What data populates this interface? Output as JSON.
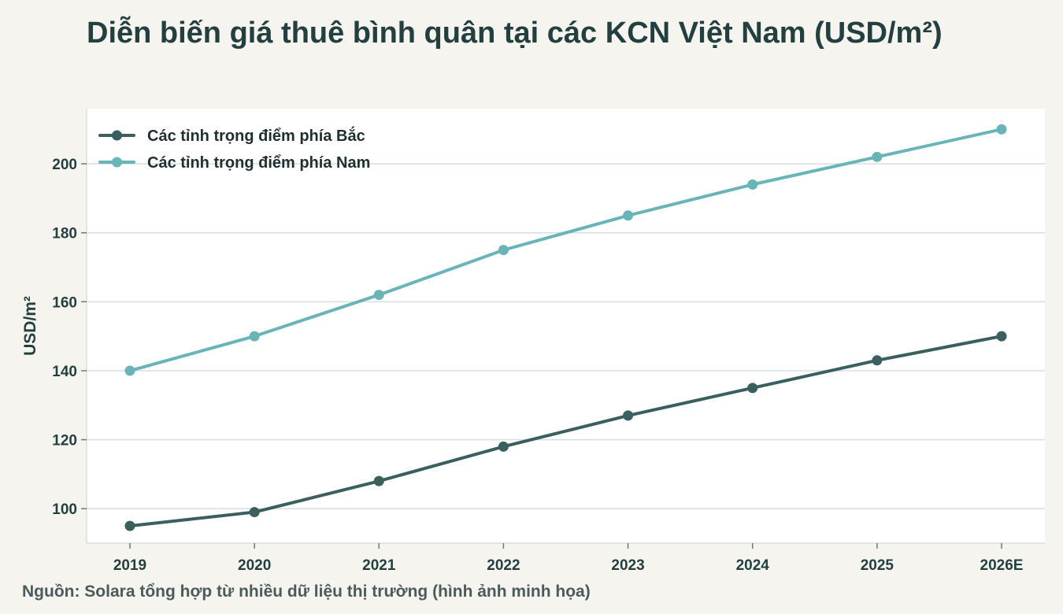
{
  "title": "Diễn biến giá thuê bình quân tại các KCN Việt Nam (USD/m²)",
  "source": "Nguồn: Solara tổng hợp từ nhiều dữ liệu thị trường (hình ảnh minh họa)",
  "colors": {
    "north": "#3b5f5f",
    "south": "#69b4b7",
    "grid": "#d9dddd",
    "plot_bg": "#ffffff",
    "page_bg": "#f5f4ef"
  },
  "chart_data": {
    "type": "line",
    "title": "Diễn biến giá thuê bình quân tại các KCN Việt Nam (USD/m²)",
    "xlabel": "",
    "ylabel": "USD/m²",
    "categories": [
      "2019",
      "2020",
      "2021",
      "2022",
      "2023",
      "2024",
      "2025",
      "2026E"
    ],
    "ylim": [
      90,
      216
    ],
    "yticks": [
      100,
      120,
      140,
      160,
      180,
      200
    ],
    "grid": true,
    "legend": "top-left",
    "series": [
      {
        "name": "Các tỉnh trọng điểm phía Bắc",
        "values": [
          95,
          99,
          108,
          118,
          127,
          135,
          143,
          150
        ],
        "color": "#3b5f5f"
      },
      {
        "name": "Các tỉnh trọng điểm phía Nam",
        "values": [
          140,
          150,
          162,
          175,
          185,
          194,
          202,
          210
        ],
        "color": "#69b4b7"
      }
    ]
  }
}
